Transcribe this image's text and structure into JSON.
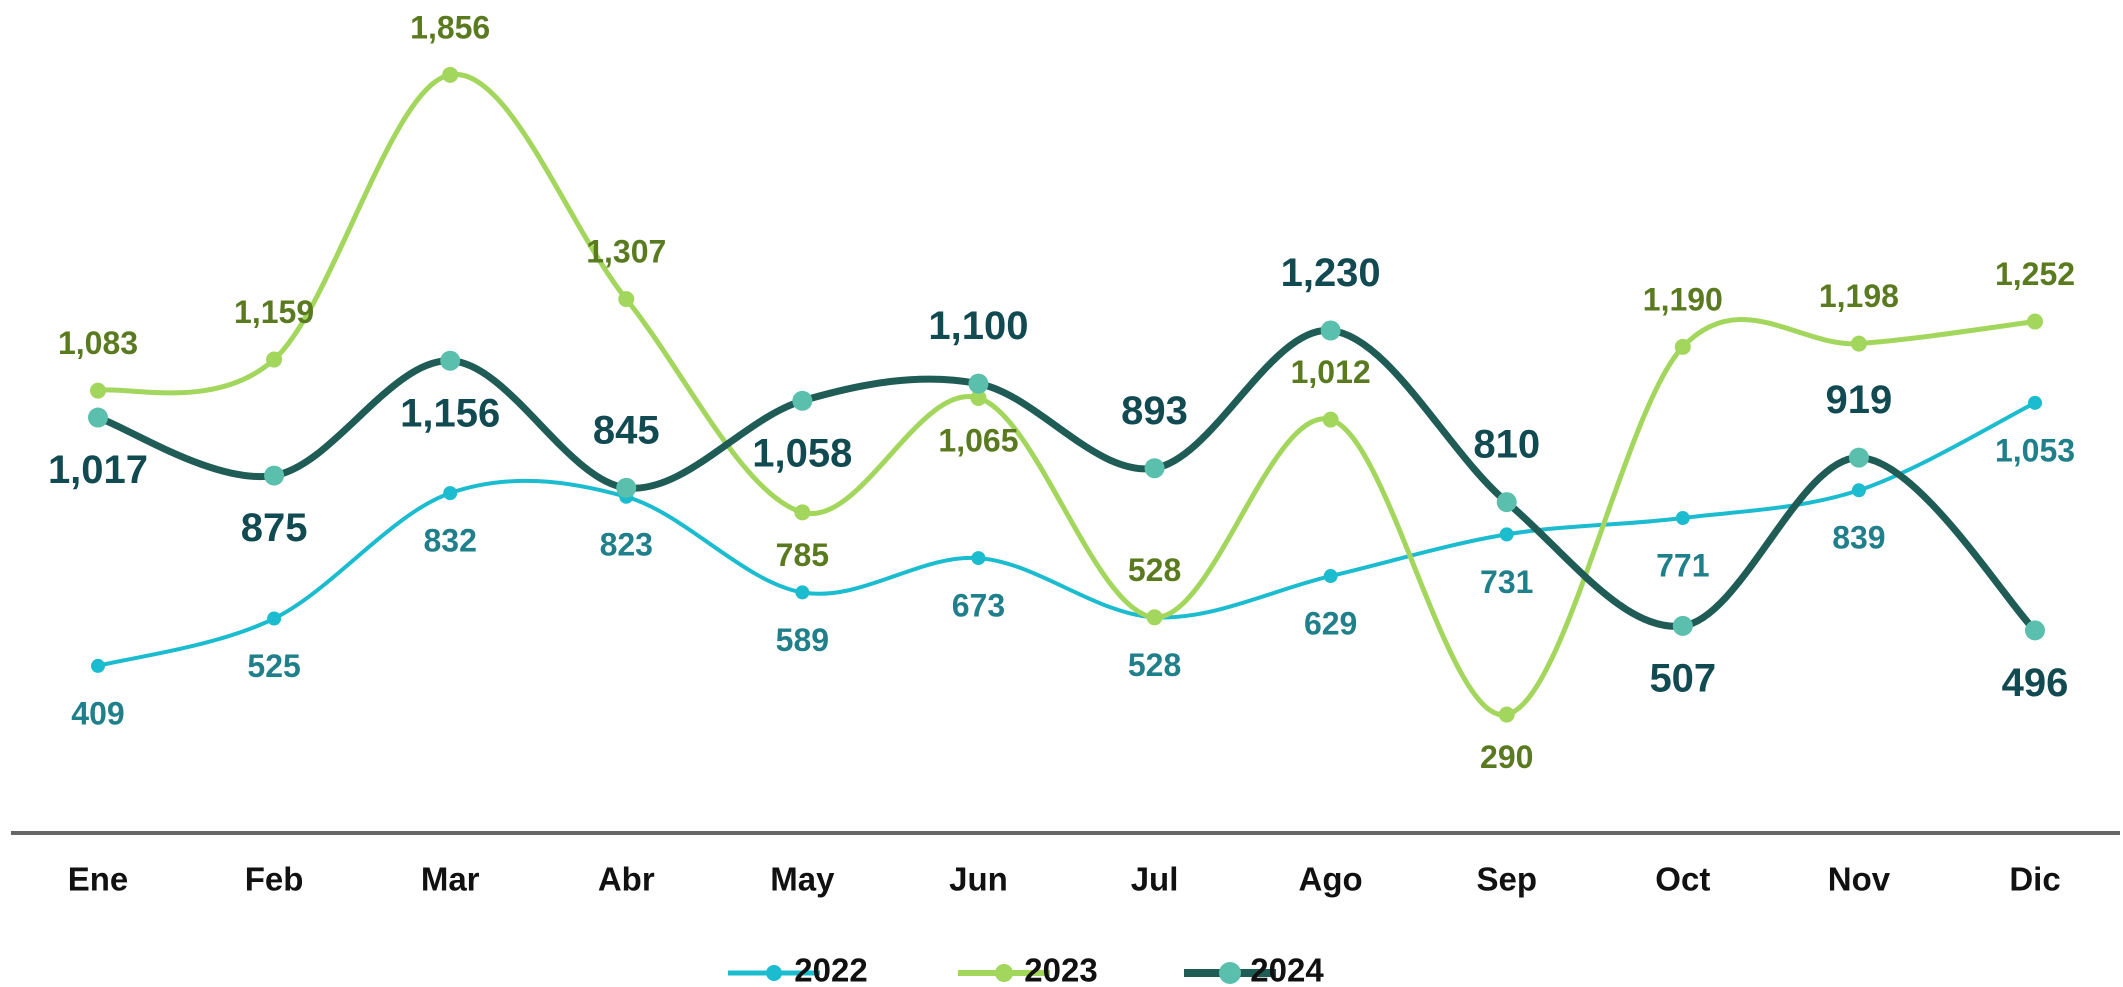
{
  "chart_data": {
    "type": "line",
    "categories": [
      "Ene",
      "Feb",
      "Mar",
      "Abr",
      "May",
      "Jun",
      "Jul",
      "Ago",
      "Sep",
      "Oct",
      "Nov",
      "Dic"
    ],
    "series": [
      {
        "name": "2022",
        "color": "#1bbccf",
        "label_color": "#1f7f8a",
        "values": [
          409,
          525,
          832,
          823,
          589,
          673,
          528,
          629,
          731,
          771,
          839,
          1053
        ],
        "value_labels": [
          "409",
          "525",
          "832",
          "823",
          "589",
          "673",
          "528",
          "629",
          "731",
          "771",
          "839",
          "1,053"
        ]
      },
      {
        "name": "2023",
        "color": "#a3d65c",
        "label_color": "#5a7a1f",
        "values": [
          1083,
          1159,
          1856,
          1307,
          785,
          1065,
          528,
          1012,
          290,
          1190,
          1198,
          1252
        ],
        "value_labels": [
          "1,083",
          "1,159",
          "1,856",
          "1,307",
          "785",
          "1,065",
          "528",
          "1,012",
          "290",
          "1,190",
          "1,198",
          "1,252"
        ]
      },
      {
        "name": "2024",
        "color": "#1f5c55",
        "marker_color": "#5bbfae",
        "label_color": "#124a52",
        "values": [
          1017,
          875,
          1156,
          845,
          1058,
          1100,
          893,
          1230,
          810,
          507,
          919,
          496
        ],
        "value_labels": [
          "1,017",
          "875",
          "1,156",
          "845",
          "1,058",
          "1,100",
          "893",
          "1,230",
          "810",
          "507",
          "919",
          "496"
        ]
      }
    ]
  }
}
